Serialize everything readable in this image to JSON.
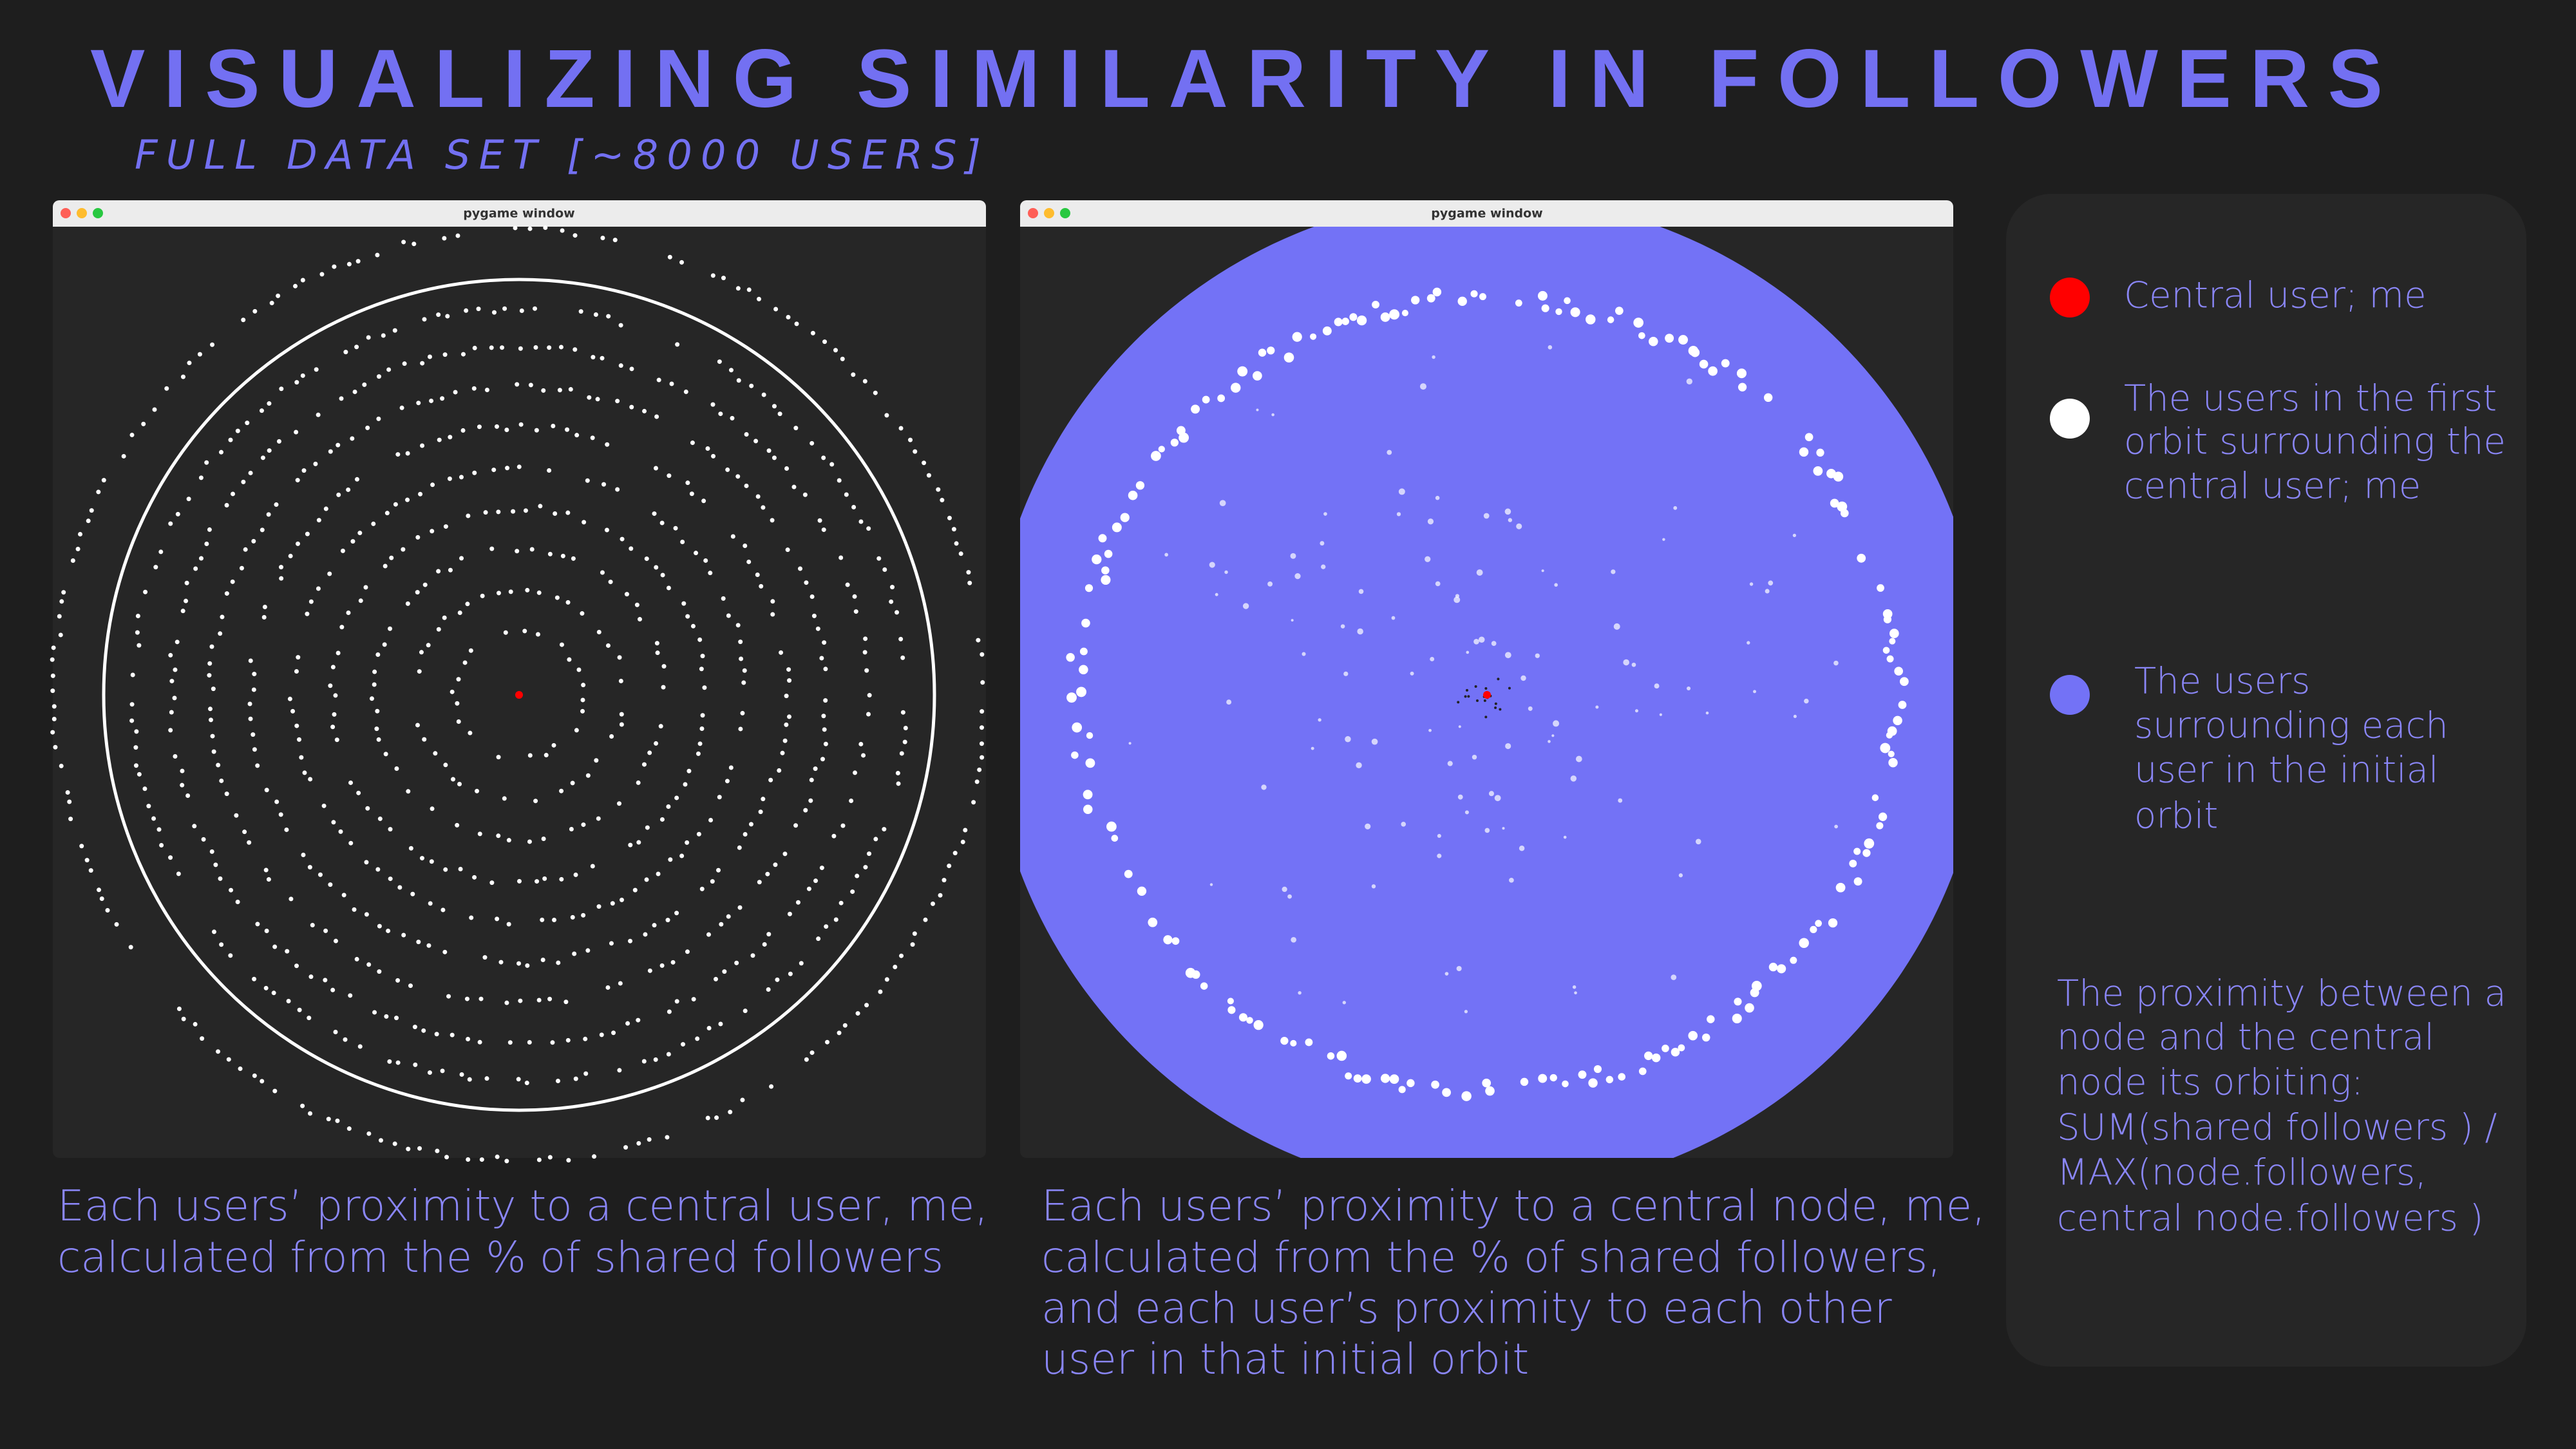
{
  "header": {
    "title": "VISUALIZING SIMILARITY IN FOLLOWERS",
    "subtitle": "FULL DATA SET [~8000 USERS]"
  },
  "windows": [
    {
      "title": "pygame window",
      "caption": [
        "Each users’ proximity to a central user, me,",
        "calculated from the % of shared followers"
      ]
    },
    {
      "title": "pygame window",
      "caption": [
        "Each users’ proximity to a central node, me,",
        "calculated from the % of shared followers,",
        "and each user’s proximity to each other",
        "user in that initial orbit"
      ]
    }
  ],
  "legend": {
    "items": [
      {
        "label": [
          "Central user; me"
        ]
      },
      {
        "label": [
          "The users in the first",
          "orbit surrounding the",
          "central user; me"
        ]
      },
      {
        "label": [
          "The users",
          "surrounding each",
          "user in the initial",
          "orbit"
        ]
      }
    ],
    "note": [
      "The proximity between a",
      "node and the central",
      "node its orbiting:",
      "SUM(shared followers ) /",
      "MAX(node.followers,",
      "central node.followers )"
    ]
  }
}
